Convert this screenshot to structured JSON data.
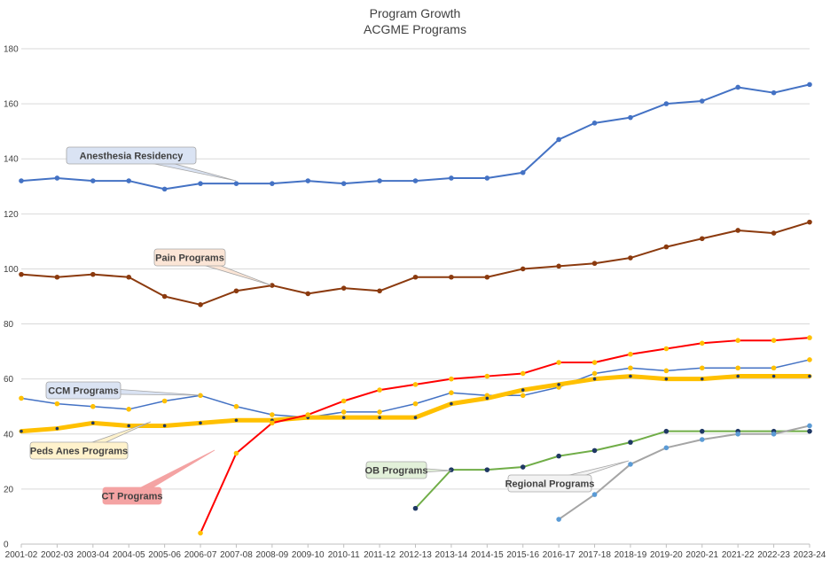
{
  "chart_data": {
    "type": "line",
    "title": "Program Growth",
    "subtitle": "ACGME Programs",
    "xlabel": "",
    "ylabel": "",
    "ylim": [
      0,
      180
    ],
    "yticks": [
      0,
      20,
      40,
      60,
      80,
      100,
      120,
      140,
      160,
      180
    ],
    "grid": true,
    "legend": "callouts",
    "categories": [
      "2001-02",
      "2002-03",
      "2003-04",
      "2004-05",
      "2005-06",
      "2006-07",
      "2007-08",
      "2008-09",
      "2009-10",
      "2010-11",
      "2011-12",
      "2012-13",
      "2013-14",
      "2014-15",
      "2015-16",
      "2016-17",
      "2017-18",
      "2018-19",
      "2019-20",
      "2020-21",
      "2021-22",
      "2022-23",
      "2023-24"
    ],
    "series": [
      {
        "name": "Anesthesia Residency",
        "color": "#4472c4",
        "marker": "#4472c4",
        "line_width": 2,
        "values": [
          132,
          133,
          132,
          132,
          129,
          131,
          131,
          131,
          132,
          131,
          132,
          132,
          133,
          133,
          135,
          147,
          153,
          155,
          160,
          161,
          166,
          164,
          167
        ]
      },
      {
        "name": "Pain Programs",
        "color": "#8b3a0e",
        "marker": "#8b3a0e",
        "line_width": 2,
        "values": [
          98,
          97,
          98,
          97,
          90,
          87,
          92,
          94,
          91,
          93,
          92,
          97,
          97,
          97,
          100,
          101,
          102,
          104,
          108,
          111,
          114,
          113,
          117
        ]
      },
      {
        "name": "CCM Programs",
        "color": "#4472c4",
        "marker": "#ffc000",
        "line_width": 1.5,
        "values": [
          53,
          51,
          50,
          49,
          52,
          54,
          50,
          47,
          46,
          48,
          48,
          51,
          55,
          54,
          54,
          57,
          62,
          64,
          63,
          64,
          64,
          64,
          67
        ]
      },
      {
        "name": "Peds Anes Programs",
        "color": "#ffc000",
        "marker": "#1f3864",
        "line_width": 5,
        "values": [
          41,
          42,
          44,
          43,
          43,
          44,
          45,
          45,
          46,
          46,
          46,
          46,
          51,
          53,
          56,
          58,
          60,
          61,
          60,
          60,
          61,
          61,
          61
        ]
      },
      {
        "name": "CT Programs",
        "color": "#ff0000",
        "marker": "#ffc000",
        "line_width": 2,
        "values": [
          null,
          null,
          null,
          null,
          null,
          4,
          33,
          44,
          47,
          52,
          56,
          58,
          60,
          61,
          62,
          66,
          66,
          69,
          71,
          73,
          74,
          74,
          75
        ]
      },
      {
        "name": "OB Programs",
        "color": "#70ad47",
        "marker": "#1f3864",
        "line_width": 2,
        "values": [
          null,
          null,
          null,
          null,
          null,
          null,
          null,
          null,
          null,
          null,
          null,
          13,
          27,
          27,
          28,
          32,
          34,
          37,
          41,
          41,
          41,
          41,
          41
        ]
      },
      {
        "name": "Regional Programs",
        "color": "#a5a5a5",
        "marker": "#5b9bd5",
        "line_width": 2,
        "values": [
          null,
          null,
          null,
          null,
          null,
          null,
          null,
          null,
          null,
          null,
          null,
          null,
          null,
          null,
          null,
          9,
          18,
          29,
          35,
          38,
          40,
          40,
          43
        ]
      }
    ],
    "callouts": [
      {
        "series": "Anesthesia Residency",
        "text": "Anesthesia Residency",
        "fill": "#dae3f3",
        "stroke": "#a6a6a6",
        "text_color": "#404040"
      },
      {
        "series": "Pain Programs",
        "text": "Pain Programs",
        "fill": "#fbe5d6",
        "stroke": "#a6a6a6",
        "text_color": "#404040"
      },
      {
        "series": "CCM Programs",
        "text": "CCM Programs",
        "fill": "#dae3f3",
        "stroke": "#a6a6a6",
        "text_color": "#404040"
      },
      {
        "series": "Peds Anes Programs",
        "text": "Peds Anes Programs",
        "fill": "#fff2cc",
        "stroke": "#a6a6a6",
        "text_color": "#404040"
      },
      {
        "series": "CT Programs",
        "text": "CT Programs",
        "fill": "#f4a3a3",
        "stroke": "#f4a3a3",
        "text_color": "#404040"
      },
      {
        "series": "OB Programs",
        "text": "OB Programs",
        "fill": "#e2f0d9",
        "stroke": "#a6a6a6",
        "text_color": "#404040"
      },
      {
        "series": "Regional Programs",
        "text": "Regional Programs",
        "fill": "#f2f2f2",
        "stroke": "#a6a6a6",
        "text_color": "#404040"
      }
    ]
  }
}
